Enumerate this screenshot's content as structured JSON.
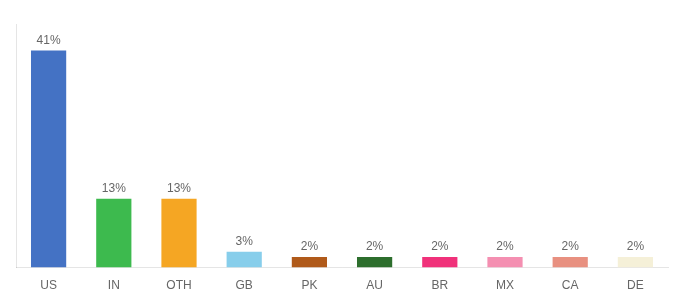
{
  "chart_data": {
    "type": "bar",
    "categories": [
      "US",
      "IN",
      "OTH",
      "GB",
      "PK",
      "AU",
      "BR",
      "MX",
      "CA",
      "DE"
    ],
    "values": [
      41,
      13,
      13,
      3,
      2,
      2,
      2,
      2,
      2,
      2
    ],
    "value_labels": [
      "41%",
      "13%",
      "13%",
      "3%",
      "2%",
      "2%",
      "2%",
      "2%",
      "2%",
      "2%"
    ],
    "colors": [
      "#4472c4",
      "#3dba4e",
      "#f5a623",
      "#87ceeb",
      "#b05a1a",
      "#2d6e2d",
      "#f0317a",
      "#f48fb1",
      "#e89080",
      "#f5f0d8"
    ],
    "ylim": [
      0,
      46
    ],
    "data_labels": true,
    "tick_labels": "x",
    "grid": false
  }
}
